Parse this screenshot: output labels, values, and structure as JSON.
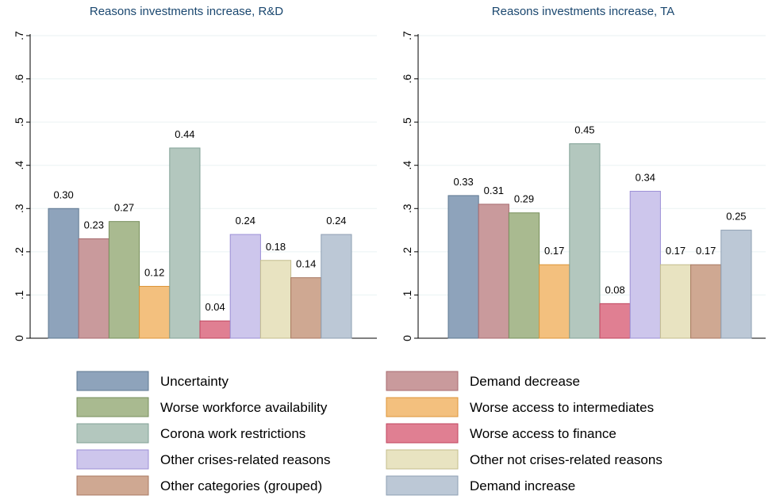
{
  "chart_data": [
    {
      "type": "bar",
      "title": "Reasons investments increase, R&D",
      "categories": [
        "Uncertainty",
        "Demand decrease",
        "Worse workforce availability",
        "Worse access to intermediates",
        "Corona work restrictions",
        "Worse access to finance",
        "Other crises-related reasons",
        "Other not crises-related reasons",
        "Other categories (grouped)",
        "Demand  increase"
      ],
      "values": [
        0.3,
        0.23,
        0.27,
        0.12,
        0.44,
        0.04,
        0.24,
        0.18,
        0.14,
        0.24
      ],
      "value_labels": [
        "0.30",
        "0.23",
        "0.27",
        "0.12",
        "0.44",
        "0.04",
        "0.24",
        "0.18",
        "0.14",
        "0.24"
      ],
      "ylim": [
        0,
        0.7
      ],
      "yticks": [
        "0",
        ".1",
        ".2",
        ".3",
        ".4",
        ".5",
        ".6",
        ".7"
      ],
      "grid": true
    },
    {
      "type": "bar",
      "title": "Reasons investments increase, TA",
      "categories": [
        "Uncertainty",
        "Demand decrease",
        "Worse workforce availability",
        "Worse access to intermediates",
        "Corona work restrictions",
        "Worse access to finance",
        "Other crises-related reasons",
        "Other not crises-related reasons",
        "Other categories (grouped)",
        "Demand  increase"
      ],
      "values": [
        0.33,
        0.31,
        0.29,
        0.17,
        0.45,
        0.08,
        0.34,
        0.17,
        0.17,
        0.25
      ],
      "value_labels": [
        "0.33",
        "0.31",
        "0.29",
        "0.17",
        "0.45",
        "0.08",
        "0.34",
        "0.17",
        "0.17",
        "0.25"
      ],
      "ylim": [
        0,
        0.7
      ],
      "yticks": [
        "0",
        ".1",
        ".2",
        ".3",
        ".4",
        ".5",
        ".6",
        ".7"
      ],
      "grid": true
    }
  ],
  "legend": {
    "placement": "bottom",
    "items": [
      {
        "label": "Uncertainty",
        "color": "#8ea3bb"
      },
      {
        "label": "Demand decrease",
        "color": "#c99a9c"
      },
      {
        "label": "Worse workforce availability",
        "color": "#a9ba90"
      },
      {
        "label": "Worse access to intermediates",
        "color": "#f3c07e"
      },
      {
        "label": "Corona work restrictions",
        "color": "#b3c7be"
      },
      {
        "label": "Worse access to finance",
        "color": "#e07f92"
      },
      {
        "label": "Other crises-related reasons",
        "color": "#cdc6ec"
      },
      {
        "label": "Other not crises-related reasons",
        "color": "#e8e3c1"
      },
      {
        "label": "Other categories (grouped)",
        "color": "#cfa892"
      },
      {
        "label": "Demand  increase",
        "color": "#bcc8d6"
      }
    ]
  },
  "stroke_colors": [
    "#5f7892",
    "#a86b6f",
    "#778f5c",
    "#dd9438",
    "#80a196",
    "#c0465f",
    "#9c8fd6",
    "#c3bc8c",
    "#a87962",
    "#8e9fb3"
  ]
}
